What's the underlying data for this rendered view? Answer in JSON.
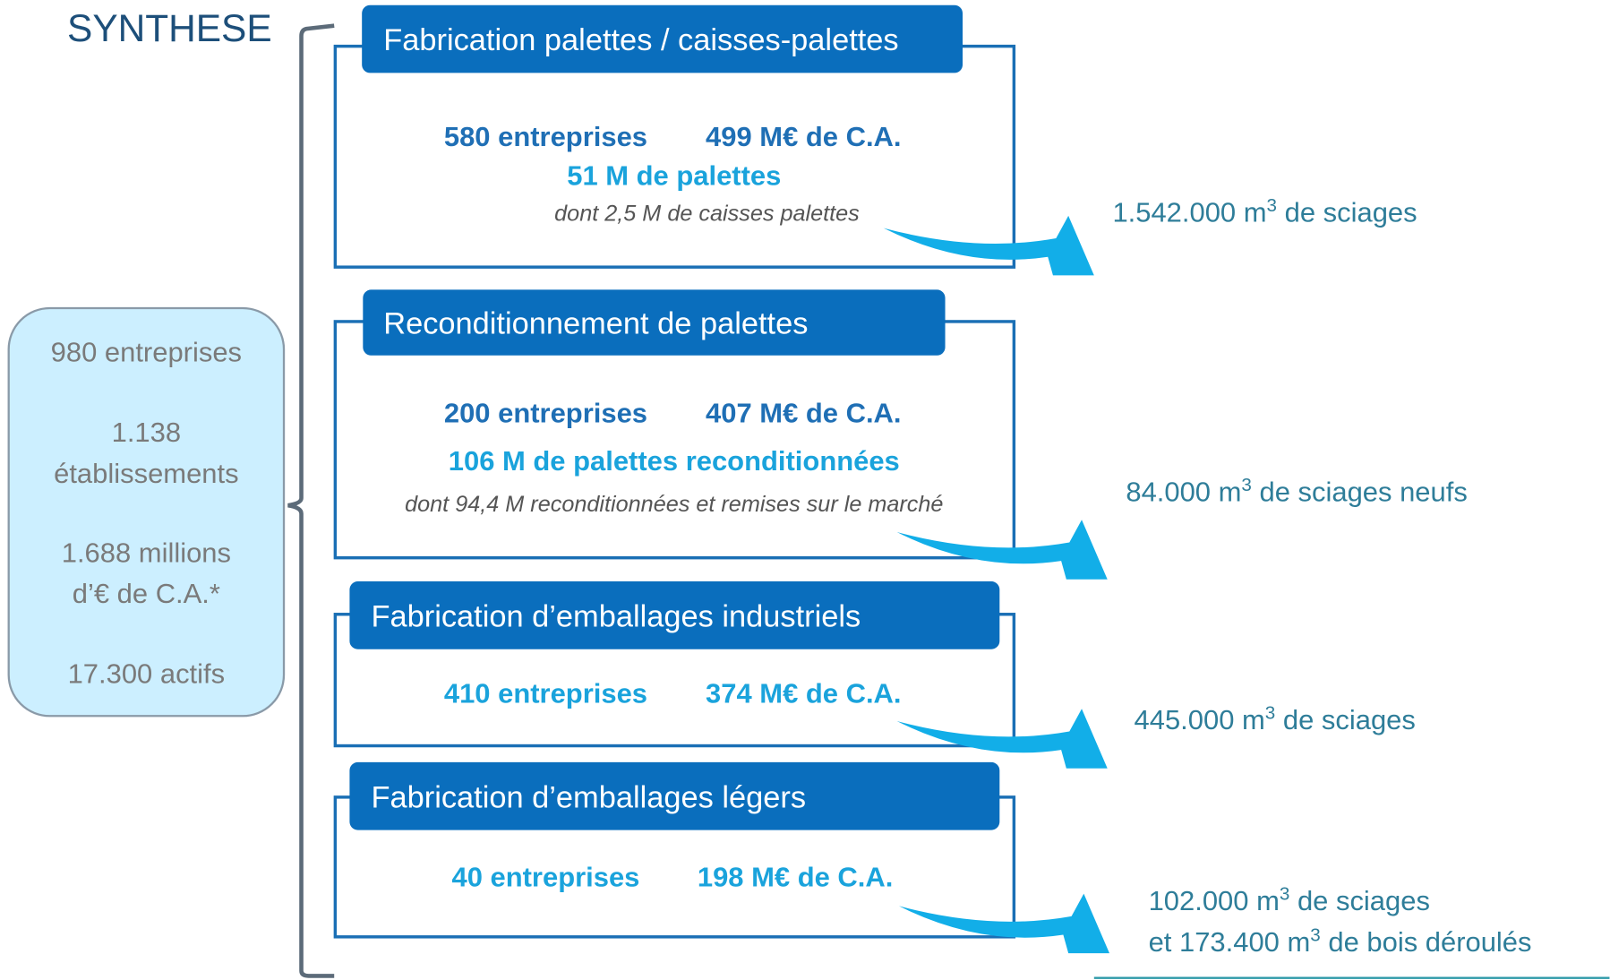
{
  "title": "SYNTHESE",
  "summary": [
    "980 entreprises",
    "1.138",
    "établissements",
    "1.688 millions",
    "d’€ de C.A.*",
    "17.300 actifs"
  ],
  "sections": [
    {
      "title": "Fabrication palettes / caisses-palettes",
      "entreprises": "580 entreprises",
      "ca": "499 M€ de C.A.",
      "palettes": "51 M de palettes",
      "note": "dont 2,5 M de caisses palettes",
      "output": [
        [
          "1.542.000 m",
          "3",
          " de sciages"
        ]
      ]
    },
    {
      "title": "Reconditionnement de palettes",
      "entreprises": "200 entreprises",
      "ca": "407 M€ de C.A.",
      "palettes": "106 M de palettes reconditionnées",
      "note": "dont 94,4 M reconditionnées et remises sur le marché",
      "output": [
        [
          "84.000 m",
          "3",
          " de sciages neufs"
        ]
      ]
    },
    {
      "title": "Fabrication d’emballages industriels",
      "entreprises": "410 entreprises",
      "ca": "374 M€ de C.A.",
      "output": [
        [
          "445.000 m",
          "3",
          " de sciages"
        ]
      ]
    },
    {
      "title": "Fabrication d’emballages légers",
      "entreprises": "40 entreprises",
      "ca": "198 M€ de C.A.",
      "output": [
        [
          "102.000 m",
          "3",
          " de sciages"
        ],
        [
          "et 173.400 m",
          "3",
          " de bois déroulés"
        ]
      ]
    }
  ]
}
